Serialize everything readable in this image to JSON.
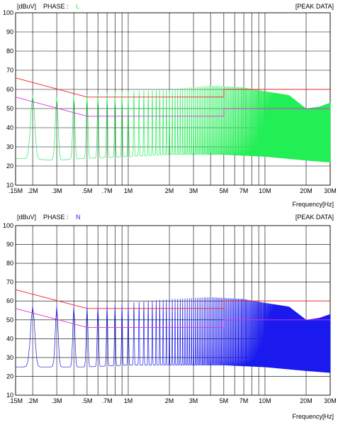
{
  "panels": [
    {
      "unit_label": "[dBuV]",
      "phase_label": "PHASE :",
      "phase_value": "L",
      "mode_label": "[PEAK DATA]",
      "x_axis_label": "Frequency[Hz]",
      "trace_color": "#22ee55"
    },
    {
      "unit_label": "[dBuV]",
      "phase_label": "PHASE :",
      "phase_value": "N",
      "mode_label": "[PEAK DATA]",
      "x_axis_label": "Frequency[Hz]",
      "trace_color": "#1a1aee"
    }
  ],
  "chart_data": [
    {
      "type": "line",
      "x_scale": "log",
      "x_unit": "Hz",
      "xlim": [
        150000,
        30000000
      ],
      "ylim": [
        10,
        100
      ],
      "y_ticks": [
        10,
        20,
        30,
        40,
        50,
        60,
        70,
        80,
        90,
        100
      ],
      "x_ticks": [
        {
          "value": 150000,
          "label": ".15M"
        },
        {
          "value": 200000,
          "label": ".2M"
        },
        {
          "value": 300000,
          "label": ".3M"
        },
        {
          "value": 500000,
          "label": ".5M"
        },
        {
          "value": 700000,
          "label": ".7M"
        },
        {
          "value": 1000000,
          "label": "1M"
        },
        {
          "value": 2000000,
          "label": "2M"
        },
        {
          "value": 3000000,
          "label": "3M"
        },
        {
          "value": 5000000,
          "label": "5M"
        },
        {
          "value": 7000000,
          "label": "7M"
        },
        {
          "value": 10000000,
          "label": "10M"
        },
        {
          "value": 20000000,
          "label": "20M"
        },
        {
          "value": 30000000,
          "label": "30M"
        }
      ],
      "grid_lines_x": [
        150000,
        200000,
        300000,
        400000,
        500000,
        600000,
        700000,
        800000,
        900000,
        1000000,
        2000000,
        3000000,
        4000000,
        5000000,
        6000000,
        7000000,
        8000000,
        9000000,
        10000000,
        20000000,
        30000000
      ],
      "grid": true,
      "limit_lines": [
        {
          "color": "#ee2222",
          "x": [
            150000,
            500000,
            5000000,
            5000000,
            30000000
          ],
          "y": [
            66,
            56,
            56,
            60,
            60
          ]
        },
        {
          "color": "#dd33dd",
          "x": [
            150000,
            500000,
            5000000,
            5000000,
            30000000
          ],
          "y": [
            56,
            46,
            46,
            50,
            50
          ]
        }
      ],
      "trace": {
        "color": "#22ee55",
        "spacing_hz": 100000,
        "first_peak_hz": 200000,
        "peak_envelope": [
          {
            "hz": 200000,
            "dbuv": 57
          },
          {
            "hz": 300000,
            "dbuv": 56
          },
          {
            "hz": 500000,
            "dbuv": 57
          },
          {
            "hz": 1000000,
            "dbuv": 59
          },
          {
            "hz": 2000000,
            "dbuv": 60
          },
          {
            "hz": 4000000,
            "dbuv": 62
          },
          {
            "hz": 7000000,
            "dbuv": 61
          },
          {
            "hz": 10000000,
            "dbuv": 59
          },
          {
            "hz": 15000000,
            "dbuv": 57
          },
          {
            "hz": 20000000,
            "dbuv": 50
          },
          {
            "hz": 25000000,
            "dbuv": 51
          },
          {
            "hz": 30000000,
            "dbuv": 53
          }
        ],
        "valley_envelope": [
          {
            "hz": 150000,
            "dbuv": 24
          },
          {
            "hz": 300000,
            "dbuv": 23
          },
          {
            "hz": 500000,
            "dbuv": 24
          },
          {
            "hz": 1000000,
            "dbuv": 25
          },
          {
            "hz": 2000000,
            "dbuv": 26
          },
          {
            "hz": 5000000,
            "dbuv": 26
          },
          {
            "hz": 10000000,
            "dbuv": 25
          },
          {
            "hz": 20000000,
            "dbuv": 23
          },
          {
            "hz": 30000000,
            "dbuv": 22
          }
        ]
      }
    },
    {
      "type": "line",
      "x_scale": "log",
      "x_unit": "Hz",
      "xlim": [
        150000,
        30000000
      ],
      "ylim": [
        10,
        100
      ],
      "y_ticks": [
        10,
        20,
        30,
        40,
        50,
        60,
        70,
        80,
        90,
        100
      ],
      "x_ticks": [
        {
          "value": 150000,
          "label": ".15M"
        },
        {
          "value": 200000,
          "label": ".2M"
        },
        {
          "value": 300000,
          "label": ".3M"
        },
        {
          "value": 500000,
          "label": ".5M"
        },
        {
          "value": 700000,
          "label": ".7M"
        },
        {
          "value": 1000000,
          "label": "1M"
        },
        {
          "value": 2000000,
          "label": "2M"
        },
        {
          "value": 3000000,
          "label": "3M"
        },
        {
          "value": 5000000,
          "label": "5M"
        },
        {
          "value": 7000000,
          "label": "7M"
        },
        {
          "value": 10000000,
          "label": "10M"
        },
        {
          "value": 20000000,
          "label": "20M"
        },
        {
          "value": 30000000,
          "label": "30M"
        }
      ],
      "grid_lines_x": [
        150000,
        200000,
        300000,
        400000,
        500000,
        600000,
        700000,
        800000,
        900000,
        1000000,
        2000000,
        3000000,
        4000000,
        5000000,
        6000000,
        7000000,
        8000000,
        9000000,
        10000000,
        20000000,
        30000000
      ],
      "grid": true,
      "limit_lines": [
        {
          "color": "#ee2222",
          "x": [
            150000,
            500000,
            5000000,
            5000000,
            30000000
          ],
          "y": [
            66,
            56,
            56,
            60,
            60
          ]
        },
        {
          "color": "#dd33dd",
          "x": [
            150000,
            500000,
            5000000,
            5000000,
            30000000
          ],
          "y": [
            56,
            46,
            46,
            50,
            50
          ]
        }
      ],
      "trace": {
        "color": "#1a1aee",
        "spacing_hz": 100000,
        "first_peak_hz": 200000,
        "peak_envelope": [
          {
            "hz": 200000,
            "dbuv": 57
          },
          {
            "hz": 300000,
            "dbuv": 57
          },
          {
            "hz": 500000,
            "dbuv": 57
          },
          {
            "hz": 1000000,
            "dbuv": 59
          },
          {
            "hz": 2000000,
            "dbuv": 61
          },
          {
            "hz": 4000000,
            "dbuv": 62
          },
          {
            "hz": 7000000,
            "dbuv": 61
          },
          {
            "hz": 10000000,
            "dbuv": 59
          },
          {
            "hz": 15000000,
            "dbuv": 57
          },
          {
            "hz": 20000000,
            "dbuv": 50
          },
          {
            "hz": 25000000,
            "dbuv": 51
          },
          {
            "hz": 30000000,
            "dbuv": 53
          }
        ],
        "valley_envelope": [
          {
            "hz": 150000,
            "dbuv": 25
          },
          {
            "hz": 300000,
            "dbuv": 25
          },
          {
            "hz": 500000,
            "dbuv": 25
          },
          {
            "hz": 1000000,
            "dbuv": 26
          },
          {
            "hz": 2000000,
            "dbuv": 26
          },
          {
            "hz": 5000000,
            "dbuv": 26
          },
          {
            "hz": 10000000,
            "dbuv": 25
          },
          {
            "hz": 20000000,
            "dbuv": 23
          },
          {
            "hz": 30000000,
            "dbuv": 22
          }
        ]
      }
    }
  ]
}
